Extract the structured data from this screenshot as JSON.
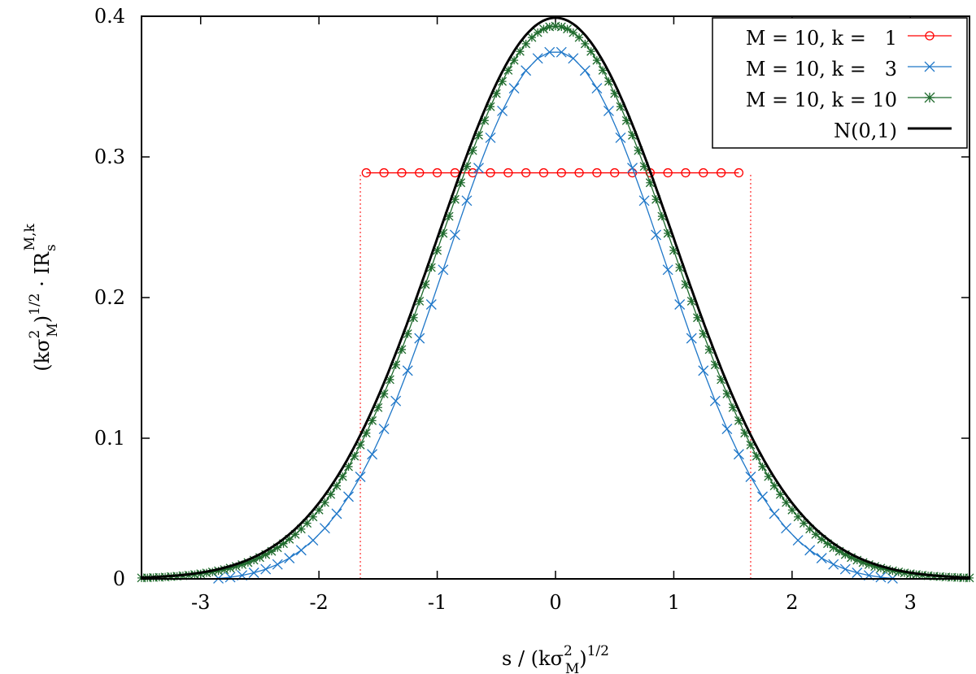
{
  "chart_data": {
    "type": "line",
    "title": "",
    "xlabel": {
      "prefix": "s / (k",
      "sigma": "σ",
      "sup": "2",
      "sub": "M",
      "suffix": ")",
      "exp": "1/2"
    },
    "ylabel": {
      "prefix": "(k",
      "sigma": "σ",
      "sup": "2",
      "sub": "M",
      "suffix": ")",
      "exp": "1/2",
      "dot": " · IR",
      "rsub": "s",
      "rsup": "M,k"
    },
    "xlim": [
      -3.5,
      3.5
    ],
    "ylim": [
      0,
      0.4
    ],
    "xticks": [
      -3,
      -2,
      -1,
      0,
      1,
      2,
      3
    ],
    "xtick_labels": [
      "-3",
      "-2",
      "-1",
      "0",
      "1",
      "2",
      "3"
    ],
    "yticks": [
      0,
      0.1,
      0.2,
      0.3,
      0.4
    ],
    "ytick_labels": [
      "0",
      "0.1",
      "0.2",
      "0.3",
      "0.4"
    ],
    "grid": false,
    "legend_position": "top-right",
    "series": [
      {
        "name": "M = 10, k =   1",
        "color": "#ff0000",
        "marker": "circle",
        "style": "uniform",
        "x_start": -1.65,
        "x_end": 1.65,
        "level": 0.2887,
        "x": [
          -1.6,
          -1.45,
          -1.3,
          -1.15,
          -1.0,
          -0.85,
          -0.7,
          -0.55,
          -0.4,
          -0.25,
          -0.1,
          0.05,
          0.2,
          0.35,
          0.5,
          0.65,
          0.8,
          0.95,
          1.1,
          1.25,
          1.4,
          1.55
        ]
      },
      {
        "name": "M = 10, k =   3",
        "color": "#1f77c8",
        "marker": "x",
        "style": "curve",
        "peak": 0.375,
        "width": 0.92,
        "x_start": -2.85,
        "x_end": 2.85,
        "step": 0.1
      },
      {
        "name": "M = 10, k = 10",
        "color": "#1e6a2c",
        "marker": "star",
        "style": "curve",
        "peak": 0.393,
        "width": 0.98,
        "x_start": -3.5,
        "x_end": 3.5,
        "step": 0.05
      },
      {
        "name": "N(0,1)",
        "color": "#000000",
        "marker": "none",
        "style": "normal",
        "x_start": -3.5,
        "x_end": 3.5
      }
    ]
  }
}
